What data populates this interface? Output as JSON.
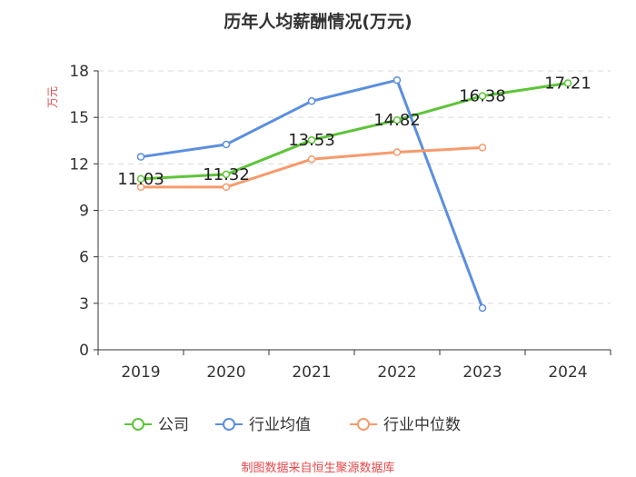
{
  "chart_data": {
    "type": "line",
    "title": "历年人均薪酬情况(万元)",
    "ylabel": "万元",
    "categories": [
      "2019",
      "2020",
      "2021",
      "2022",
      "2023",
      "2024"
    ],
    "ylim": [
      0,
      18
    ],
    "yticks": [
      0,
      3,
      6,
      9,
      12,
      15,
      18
    ],
    "grid": true,
    "legend_position": "bottom",
    "series": [
      {
        "name": "公司",
        "color": "#5ec43a",
        "values": [
          11.03,
          11.32,
          13.53,
          14.82,
          16.38,
          17.21
        ],
        "labels": [
          "11.03",
          "11.32",
          "13.53",
          "14.82",
          "16.38",
          "17.21"
        ]
      },
      {
        "name": "行业均值",
        "color": "#5b8ee0",
        "values": [
          12.45,
          13.25,
          16.05,
          17.4,
          2.7,
          null
        ]
      },
      {
        "name": "行业中位数",
        "color": "#f79a6b",
        "values": [
          10.5,
          10.5,
          12.3,
          12.75,
          13.05,
          null
        ]
      }
    ],
    "source": "制图数据来自恒生聚源数据库"
  }
}
